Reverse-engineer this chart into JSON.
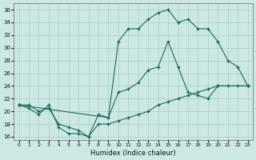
{
  "background_color": "#cce8e4",
  "grid_color": "#aaccca",
  "line_color": "#1a6b5e",
  "xlabel": "Humidex (Indice chaleur)",
  "xlim": [
    -0.5,
    23.5
  ],
  "ylim": [
    15.5,
    37
  ],
  "xticks": [
    0,
    1,
    2,
    3,
    4,
    5,
    6,
    7,
    8,
    9,
    10,
    11,
    12,
    13,
    14,
    15,
    16,
    17,
    18,
    19,
    20,
    21,
    22,
    23
  ],
  "yticks": [
    16,
    18,
    20,
    22,
    24,
    26,
    28,
    30,
    32,
    34,
    36
  ],
  "line1_x": [
    0,
    9,
    10,
    11,
    12,
    13,
    14,
    15,
    16,
    17,
    18,
    19,
    20,
    21,
    22,
    23
  ],
  "line1_y": [
    21,
    19,
    31,
    33,
    33,
    34.5,
    35.5,
    36,
    34,
    34.5,
    33,
    33,
    31,
    28,
    27,
    24
  ],
  "line2_x": [
    0,
    1,
    2,
    3,
    4,
    5,
    6,
    7,
    8,
    9,
    10,
    11,
    12,
    13,
    14,
    15,
    16,
    17,
    18,
    19,
    20,
    23
  ],
  "line2_y": [
    21,
    20.5,
    19.5,
    21,
    17.5,
    16.5,
    16.5,
    16,
    19.5,
    19,
    23,
    23.5,
    24.5,
    26.5,
    27,
    31,
    27,
    23,
    22.5,
    22,
    24,
    24
  ],
  "line3_x": [
    0,
    1,
    2,
    3,
    4,
    5,
    6,
    7,
    8,
    9,
    10,
    11,
    12,
    13,
    14,
    15,
    16,
    17,
    18,
    19,
    20,
    21,
    22,
    23
  ],
  "line3_y": [
    21,
    21,
    20,
    20.5,
    18,
    17.5,
    17,
    16,
    18,
    18,
    18.5,
    19,
    19.5,
    20,
    21,
    21.5,
    22,
    22.5,
    23,
    23.5,
    24,
    24,
    24,
    24
  ]
}
